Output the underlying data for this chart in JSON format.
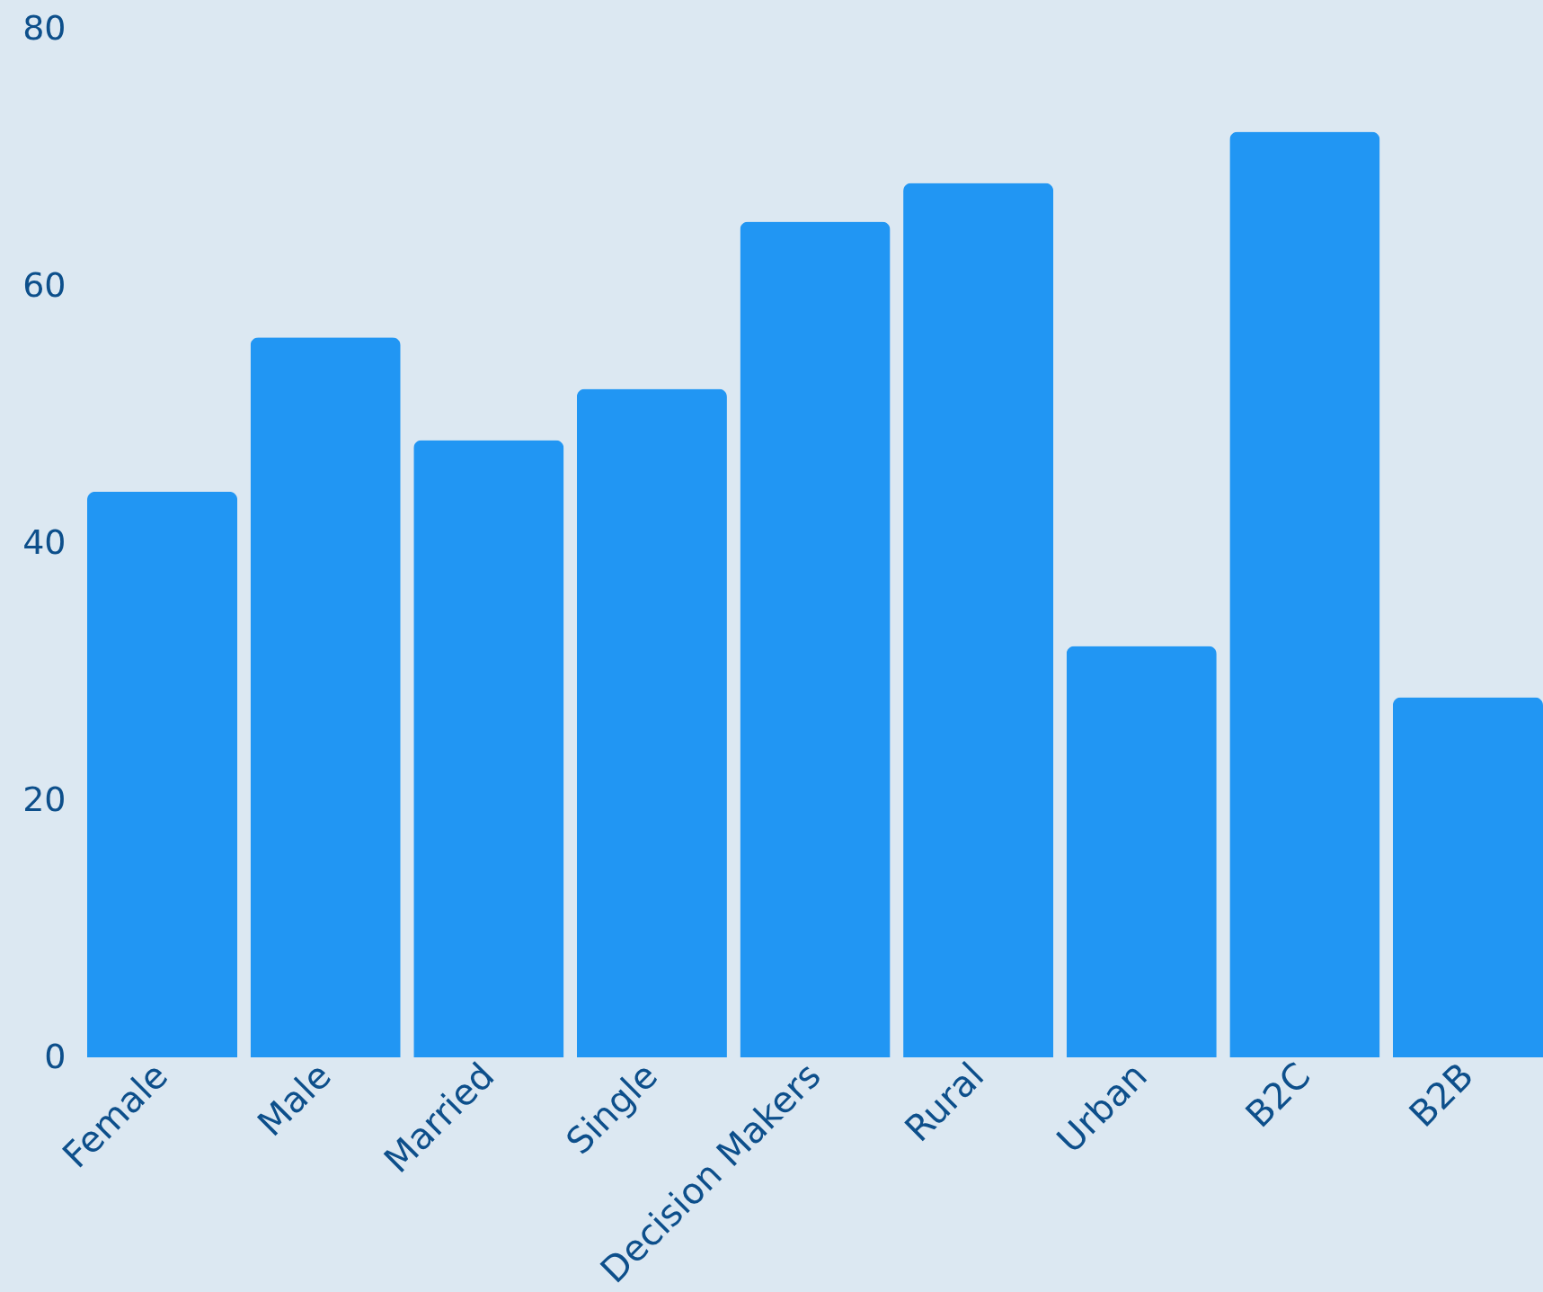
{
  "chart_data": {
    "type": "bar",
    "categories": [
      "Female",
      "Male",
      "Married",
      "Single",
      "Decision Makers",
      "Rural",
      "Urban",
      "B2C",
      "B2B"
    ],
    "values": [
      44,
      56,
      48,
      52,
      65,
      68,
      32,
      72,
      28
    ],
    "color": "#2196f3",
    "ylim": [
      0,
      80
    ],
    "yticks": [
      0,
      20,
      40,
      60,
      80
    ]
  }
}
